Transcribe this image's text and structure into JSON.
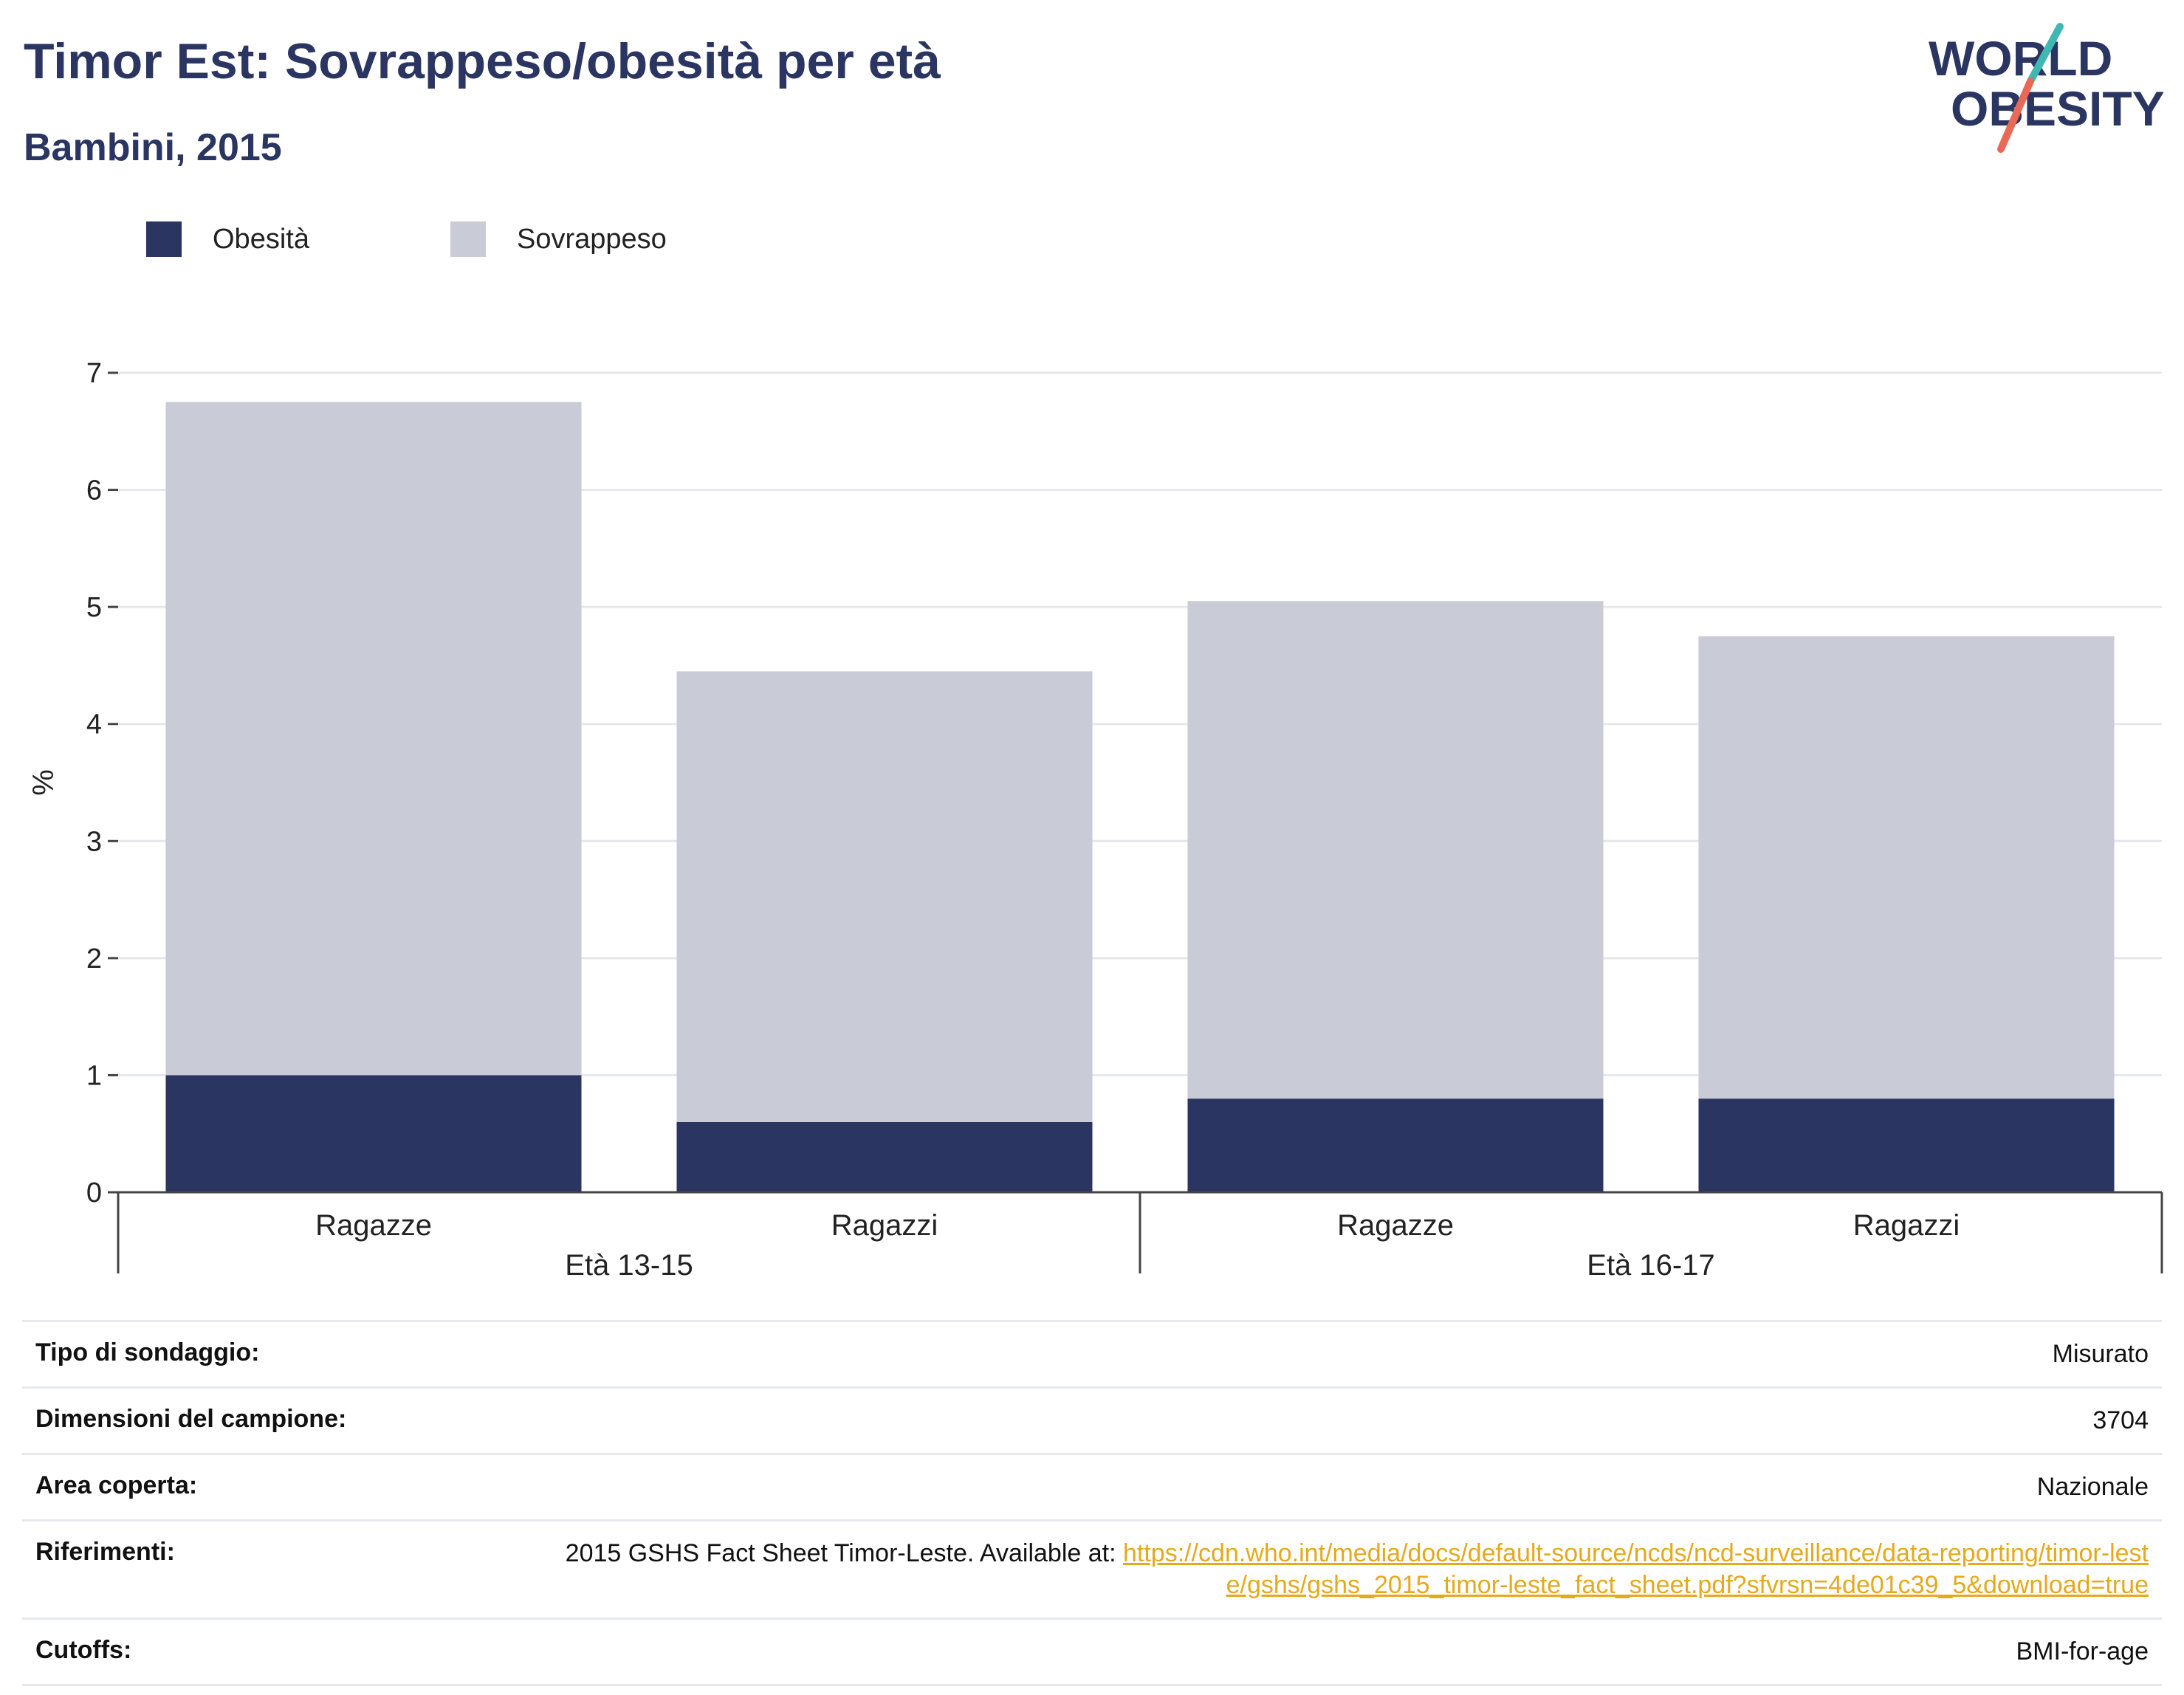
{
  "header": {
    "title": "Timor Est: Sovrappeso/obesità per età",
    "subtitle": "Bambini, 2015",
    "logo_line1": "WORLD",
    "logo_line2": "OBESITY"
  },
  "colors": {
    "title": "#2a3562",
    "obesity": "#2a3562",
    "overweight": "#c9cbd7",
    "link": "#e5a91d",
    "logo_text": "#2a3562",
    "logo_teal": "#3fb8b4",
    "logo_coral": "#e86a56"
  },
  "legend": {
    "items": [
      {
        "label": "Obesità",
        "color": "#2a3562"
      },
      {
        "label": "Sovrappeso",
        "color": "#c9cbd7"
      }
    ]
  },
  "chart_data": {
    "type": "bar",
    "stacked": true,
    "ylabel": "%",
    "ylim": [
      0,
      7
    ],
    "yticks": [
      0,
      1,
      2,
      3,
      4,
      5,
      6,
      7
    ],
    "grid": true,
    "legend_position": "top-left",
    "categories": [
      "Ragazze",
      "Ragazzi",
      "Ragazze",
      "Ragazzi"
    ],
    "groups": [
      {
        "label": "Età 13-15",
        "categories": [
          "Ragazze",
          "Ragazzi"
        ]
      },
      {
        "label": "Età 16-17",
        "categories": [
          "Ragazze",
          "Ragazzi"
        ]
      }
    ],
    "series": [
      {
        "name": "Obesità",
        "values": [
          1.0,
          0.6,
          0.8,
          0.8
        ]
      },
      {
        "name": "Sovrappeso",
        "values": [
          5.75,
          3.85,
          4.25,
          3.95
        ]
      }
    ]
  },
  "meta": {
    "rows": [
      {
        "label": "Tipo di sondaggio:",
        "value": "Misurato"
      },
      {
        "label": "Dimensioni del campione:",
        "value": "3704"
      },
      {
        "label": "Area coperta:",
        "value": "Nazionale"
      },
      {
        "label": "Riferimenti:",
        "value": "2015 GSHS Fact Sheet Timor-Leste. Available at: ",
        "link": "https://cdn.who.int/media/docs/default-source/ncds/ncd-surveillance/data-reporting/timor-leste/gshs/gshs_2015_timor-leste_fact_sheet.pdf?sfvrsn=4de01c39_5&download=true"
      },
      {
        "label": "Cutoffs:",
        "value": "BMI-for-age"
      }
    ]
  }
}
